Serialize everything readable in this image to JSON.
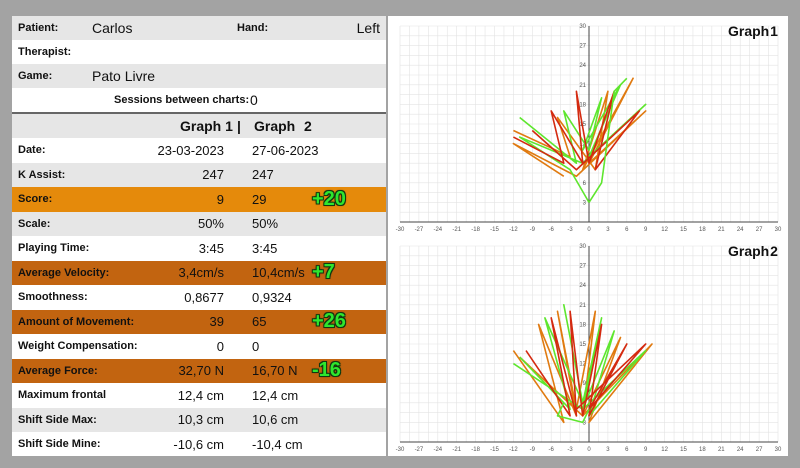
{
  "info": {
    "patient_label": "Patient:",
    "patient_value": "Carlos",
    "hand_label": "Hand:",
    "hand_value": "Left",
    "therapist_label": "Therapist:",
    "therapist_value": "",
    "game_label": "Game:",
    "game_value": "Pato Livre",
    "sessions_label": "Sessions between charts:",
    "sessions_value": "0"
  },
  "table_header": {
    "graph1": "Graph 1",
    "divider": "|",
    "graph2": "Graph",
    "graph2_num": "2"
  },
  "rows": [
    {
      "label": "Date:",
      "v1": "23-03-2023",
      "v2": "27-06-2023",
      "diff": "",
      "style": "white"
    },
    {
      "label": "K Assist:",
      "v1": "247",
      "v2": "247",
      "diff": "",
      "style": "gray"
    },
    {
      "label": "Score:",
      "v1": "9",
      "v2": "29",
      "diff": "+20",
      "style": "orange"
    },
    {
      "label": "Scale:",
      "v1": "50%",
      "v2": "50%",
      "diff": "",
      "style": "gray"
    },
    {
      "label": "Playing Time:",
      "v1": "3:45",
      "v2": "3:45",
      "diff": "",
      "style": "white"
    },
    {
      "label": "Average Velocity:",
      "v1": "3,4cm/s",
      "v2": "10,4cm/s",
      "diff": "+7",
      "style": "brown"
    },
    {
      "label": "Smoothness:",
      "v1": "0,8677",
      "v2": "0,9324",
      "diff": "",
      "style": "white"
    },
    {
      "label": "Amount of Movement:",
      "v1": "39",
      "v2": "65",
      "diff": "+26",
      "style": "brown"
    },
    {
      "label": "Weight Compensation:",
      "v1": "0",
      "v2": "0",
      "diff": "",
      "style": "white"
    },
    {
      "label": "Average Force:",
      "v1": "32,70 N",
      "v2": "16,70 N",
      "diff": "-16",
      "style": "brown"
    },
    {
      "label": "Maximum frontal",
      "v1": "12,4 cm",
      "v2": "12,4 cm",
      "diff": "",
      "style": "white"
    },
    {
      "label": "Shift Side Max:",
      "v1": "10,3 cm",
      "v2": "10,6 cm",
      "diff": "",
      "style": "gray"
    },
    {
      "label": "Shift Side Mine:",
      "v1": "-10,6 cm",
      "v2": "-10,4 cm",
      "diff": "",
      "style": "white"
    }
  ],
  "graphs": [
    {
      "title": "Graph",
      "number": "1"
    },
    {
      "title": "Graph",
      "number": "2"
    }
  ],
  "axes": {
    "x_ticks": [
      "-30",
      "-27",
      "-24",
      "-21",
      "-18",
      "-15",
      "-12",
      "-9",
      "-6",
      "-3",
      "0",
      "3",
      "6",
      "9",
      "12",
      "15",
      "18",
      "21",
      "24",
      "27",
      "30"
    ],
    "y_ticks": [
      "30",
      "27",
      "24",
      "21",
      "18",
      "15",
      "12",
      "9",
      "6",
      "3"
    ]
  },
  "colors": {
    "score_highlight": "#e58a0b",
    "metric_highlight": "#c26410",
    "diff_text": "#2ee62e",
    "trace_green": "#5ee62e",
    "trace_orange": "#e07a10",
    "trace_red": "#d42a10"
  }
}
